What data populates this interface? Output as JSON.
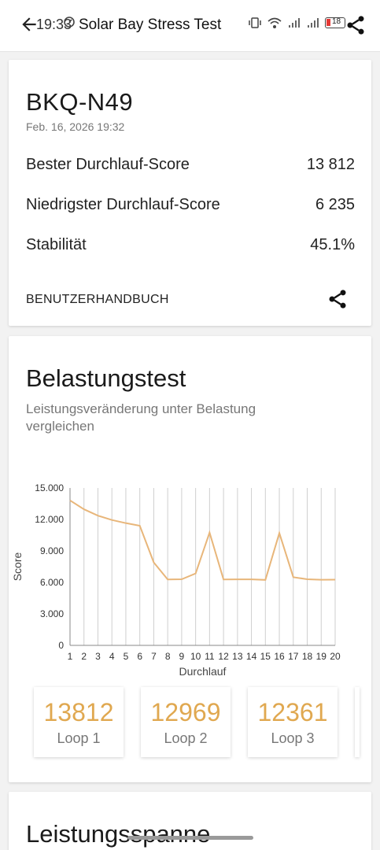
{
  "status_bar": {
    "time": "19:33",
    "battery": "18"
  },
  "header": {
    "title": "Solar Bay Stress Test"
  },
  "summary": {
    "device": "BKQ-N49",
    "date": "Feb. 16, 2026 19:32",
    "best_label": "Bester Durchlauf-Score",
    "best_value": "13 812",
    "lowest_label": "Niedrigster Durchlauf-Score",
    "lowest_value": "6 235",
    "stability_label": "Stabilität",
    "stability_value": "45.1%",
    "manual_label": "BENUTZERHANDBUCH"
  },
  "stress": {
    "title": "Belastungstest",
    "subtitle": "Leistungsveränderung unter Belastung vergleichen",
    "loops": [
      {
        "value": "13812",
        "label": "Loop 1"
      },
      {
        "value": "12969",
        "label": "Loop 2"
      },
      {
        "value": "12361",
        "label": "Loop 3"
      }
    ]
  },
  "range_section": {
    "title": "Leistungsspanne"
  },
  "colors": {
    "accent": "#e0a850",
    "line": "#e8b67a"
  },
  "chart_data": {
    "type": "line",
    "title": "",
    "xlabel": "Durchlauf",
    "ylabel": "Score",
    "x": [
      1,
      2,
      3,
      4,
      5,
      6,
      7,
      8,
      9,
      10,
      11,
      12,
      13,
      14,
      15,
      16,
      17,
      18,
      19,
      20
    ],
    "series": [
      {
        "values": [
          13812,
          12969,
          12361,
          11950,
          11650,
          11400,
          7900,
          6280,
          6300,
          6850,
          10750,
          6280,
          6290,
          6290,
          6240,
          10700,
          6500,
          6300,
          6250,
          6260
        ]
      }
    ],
    "y_ticks": [
      "0",
      "3.000",
      "6.000",
      "9.000",
      "12.000",
      "15.000"
    ],
    "ylim": [
      0,
      15000
    ],
    "grid": "vertical"
  }
}
